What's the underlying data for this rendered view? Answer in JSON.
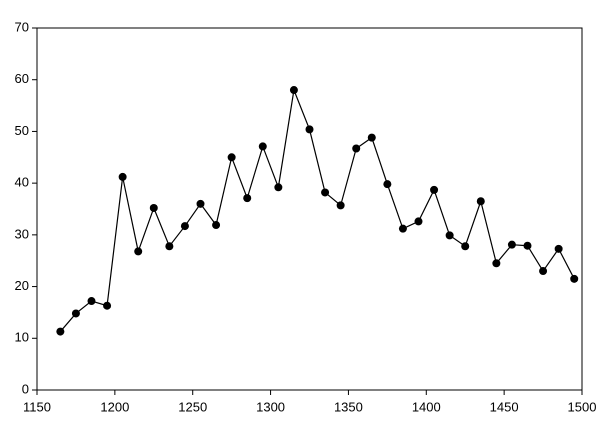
{
  "chart_data": {
    "type": "line",
    "x": [
      1165,
      1175,
      1185,
      1195,
      1205,
      1215,
      1225,
      1235,
      1245,
      1255,
      1265,
      1275,
      1285,
      1295,
      1305,
      1315,
      1325,
      1335,
      1345,
      1355,
      1365,
      1375,
      1385,
      1395,
      1405,
      1415,
      1425,
      1435,
      1445,
      1455,
      1465,
      1475,
      1485,
      1495
    ],
    "values": [
      11.3,
      14.8,
      17.2,
      16.3,
      41.2,
      26.8,
      35.2,
      27.8,
      31.7,
      36,
      31.9,
      45,
      37.1,
      47.1,
      39.2,
      58,
      50.4,
      38.2,
      35.7,
      46.7,
      48.8,
      39.8,
      31.2,
      32.6,
      38.7,
      29.9,
      27.8,
      36.5,
      24.5,
      28.1,
      27.9,
      23,
      27.3,
      21.5
    ],
    "color": "#000000",
    "xlim": [
      1150,
      1500
    ],
    "xticks": [
      1150,
      1200,
      1250,
      1300,
      1350,
      1400,
      1450,
      1500
    ],
    "ylim": [
      0,
      70
    ],
    "yticks": [
      0,
      10,
      20,
      30,
      40,
      50,
      60,
      70
    ],
    "grid": false
  }
}
